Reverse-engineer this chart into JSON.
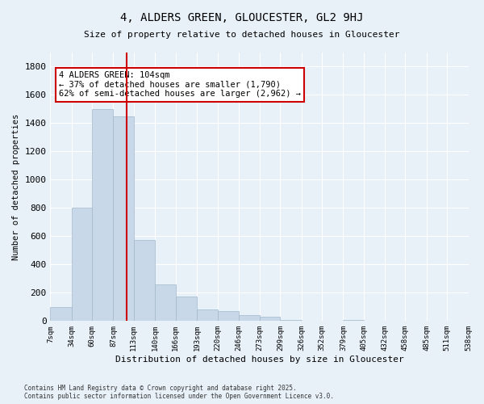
{
  "title1": "4, ALDERS GREEN, GLOUCESTER, GL2 9HJ",
  "title2": "Size of property relative to detached houses in Gloucester",
  "xlabel": "Distribution of detached houses by size in Gloucester",
  "ylabel": "Number of detached properties",
  "bin_edges": [
    7,
    34,
    60,
    87,
    113,
    140,
    166,
    193,
    220,
    246,
    273,
    299,
    326,
    352,
    379,
    405,
    432,
    458,
    485,
    511,
    538
  ],
  "bar_heights": [
    100,
    800,
    1500,
    1450,
    575,
    260,
    175,
    80,
    70,
    40,
    30,
    10,
    0,
    0,
    5,
    0,
    0,
    0,
    0,
    0
  ],
  "bar_color": "#c8d8e8",
  "bar_edge_color": "#a0b8cc",
  "property_size": 104,
  "red_line_color": "#cc0000",
  "annotation_text": "4 ALDERS GREEN: 104sqm\n← 37% of detached houses are smaller (1,790)\n62% of semi-detached houses are larger (2,962) →",
  "annotation_box_color": "#ffffff",
  "annotation_box_edge": "#cc0000",
  "ylim": [
    0,
    1900
  ],
  "yticks": [
    0,
    200,
    400,
    600,
    800,
    1000,
    1200,
    1400,
    1600,
    1800
  ],
  "background_color": "#e8f0f8",
  "grid_color": "#ffffff",
  "footnote": "Contains HM Land Registry data © Crown copyright and database right 2025.\nContains public sector information licensed under the Open Government Licence v3.0."
}
